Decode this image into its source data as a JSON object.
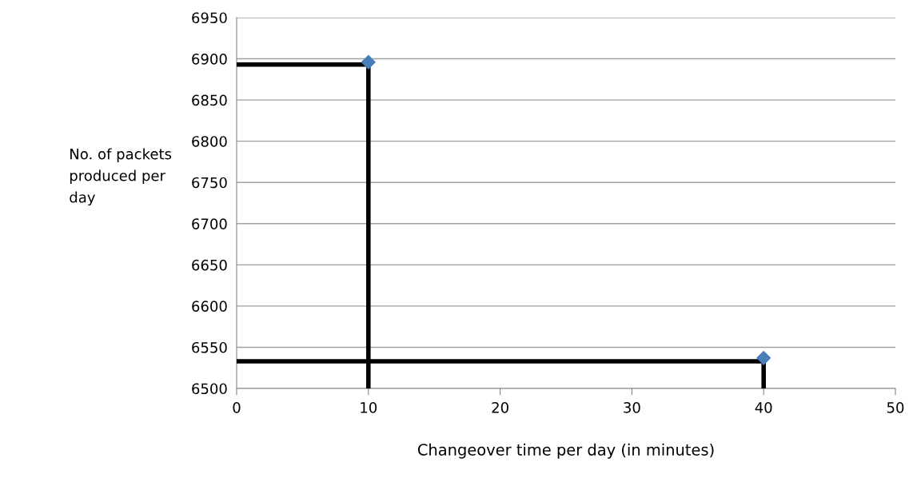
{
  "chart_data": {
    "type": "scatter",
    "xlabel": "Changeover time per day (in minutes)",
    "ylabel": "No. of packets produced per day",
    "xlim": [
      0,
      50
    ],
    "xticks": [
      0,
      10,
      20,
      30,
      40,
      50
    ],
    "ylim": [
      6500,
      6950
    ],
    "yticks": [
      6500,
      6550,
      6600,
      6650,
      6700,
      6750,
      6800,
      6850,
      6900,
      6950
    ],
    "grid": "y",
    "marker": "diamond",
    "series": [
      {
        "color": "#4a7ebb",
        "x": [
          10,
          40
        ],
        "values": [
          6896,
          6537
        ]
      },
      {
        "type": "line",
        "color": "#000000",
        "marker": "none",
        "x": [
          0,
          10,
          10
        ],
        "values": [
          6893,
          6893,
          6500
        ]
      },
      {
        "type": "line",
        "color": "#000000",
        "marker": "none",
        "x": [
          0,
          40,
          40
        ],
        "values": [
          6533,
          6533,
          6500
        ]
      }
    ]
  }
}
